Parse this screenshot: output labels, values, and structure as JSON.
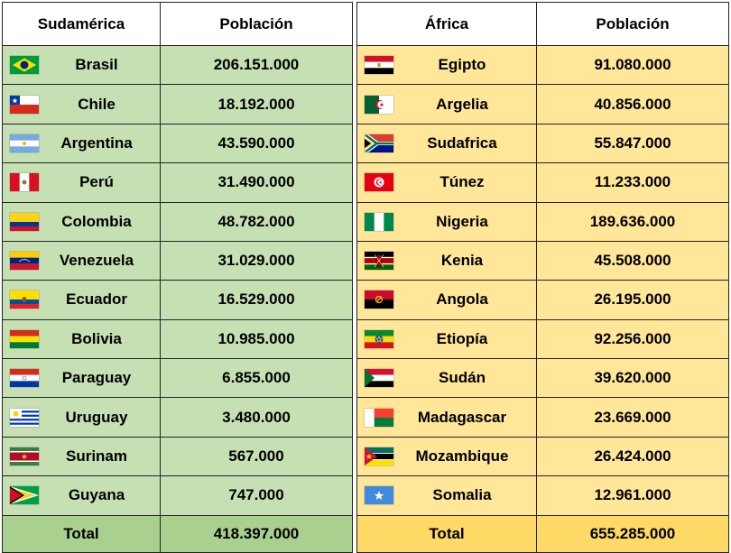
{
  "south_america": {
    "header_region": "Sudamérica",
    "header_population": "Población",
    "rows": [
      {
        "country": "Brasil",
        "population": "206.151.000",
        "flag": "brazil-flag-icon"
      },
      {
        "country": "Chile",
        "population": "18.192.000",
        "flag": "chile-flag-icon"
      },
      {
        "country": "Argentina",
        "population": "43.590.000",
        "flag": "argentina-flag-icon"
      },
      {
        "country": "Perú",
        "population": "31.490.000",
        "flag": "peru-flag-icon"
      },
      {
        "country": "Colombia",
        "population": "48.782.000",
        "flag": "colombia-flag-icon"
      },
      {
        "country": "Venezuela",
        "population": "31.029.000",
        "flag": "venezuela-flag-icon"
      },
      {
        "country": "Ecuador",
        "population": "16.529.000",
        "flag": "ecuador-flag-icon"
      },
      {
        "country": "Bolivia",
        "population": "10.985.000",
        "flag": "bolivia-flag-icon"
      },
      {
        "country": "Paraguay",
        "population": "6.855.000",
        "flag": "paraguay-flag-icon"
      },
      {
        "country": "Uruguay",
        "population": "3.480.000",
        "flag": "uruguay-flag-icon"
      },
      {
        "country": "Surinam",
        "population": "567.000",
        "flag": "suriname-flag-icon"
      },
      {
        "country": "Guyana",
        "population": "747.000",
        "flag": "guyana-flag-icon"
      }
    ],
    "total_label": "Total",
    "total_value": "418.397.000"
  },
  "africa": {
    "header_region": "África",
    "header_population": "Población",
    "rows": [
      {
        "country": "Egipto",
        "population": "91.080.000",
        "flag": "egypt-flag-icon"
      },
      {
        "country": "Argelia",
        "population": "40.856.000",
        "flag": "algeria-flag-icon"
      },
      {
        "country": "Sudafrica",
        "population": "55.847.000",
        "flag": "south-africa-flag-icon"
      },
      {
        "country": "Túnez",
        "population": "11.233.000",
        "flag": "tunisia-flag-icon"
      },
      {
        "country": "Nigeria",
        "population": "189.636.000",
        "flag": "nigeria-flag-icon"
      },
      {
        "country": "Kenia",
        "population": "45.508.000",
        "flag": "kenya-flag-icon"
      },
      {
        "country": "Angola",
        "population": "26.195.000",
        "flag": "angola-flag-icon"
      },
      {
        "country": "Etiopía",
        "population": "92.256.000",
        "flag": "ethiopia-flag-icon"
      },
      {
        "country": "Sudán",
        "population": "39.620.000",
        "flag": "sudan-flag-icon"
      },
      {
        "country": "Madagascar",
        "population": "23.669.000",
        "flag": "madagascar-flag-icon"
      },
      {
        "country": "Mozambique",
        "population": "26.424.000",
        "flag": "mozambique-flag-icon"
      },
      {
        "country": "Somalia",
        "population": "12.961.000",
        "flag": "somalia-flag-icon"
      }
    ],
    "total_label": "Total",
    "total_value": "655.285.000"
  },
  "colors": {
    "south_america_cell": "#c6e0b4",
    "south_america_total": "#a9d08e",
    "africa_cell": "#ffe699",
    "africa_total": "#ffd966"
  }
}
